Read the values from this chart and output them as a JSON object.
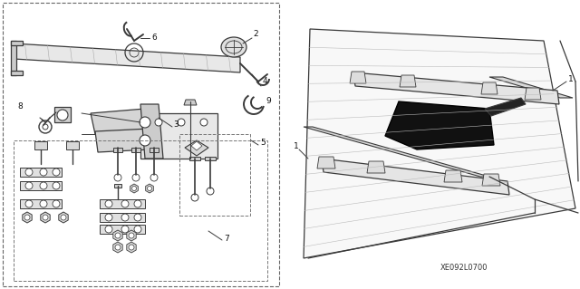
{
  "bg_color": "#ffffff",
  "line_color": "#3a3a3a",
  "diagram_code": "XE092L0700",
  "lw_main": 0.9,
  "lw_thin": 0.5,
  "lw_thick": 1.4,
  "label_fontsize": 6.5
}
